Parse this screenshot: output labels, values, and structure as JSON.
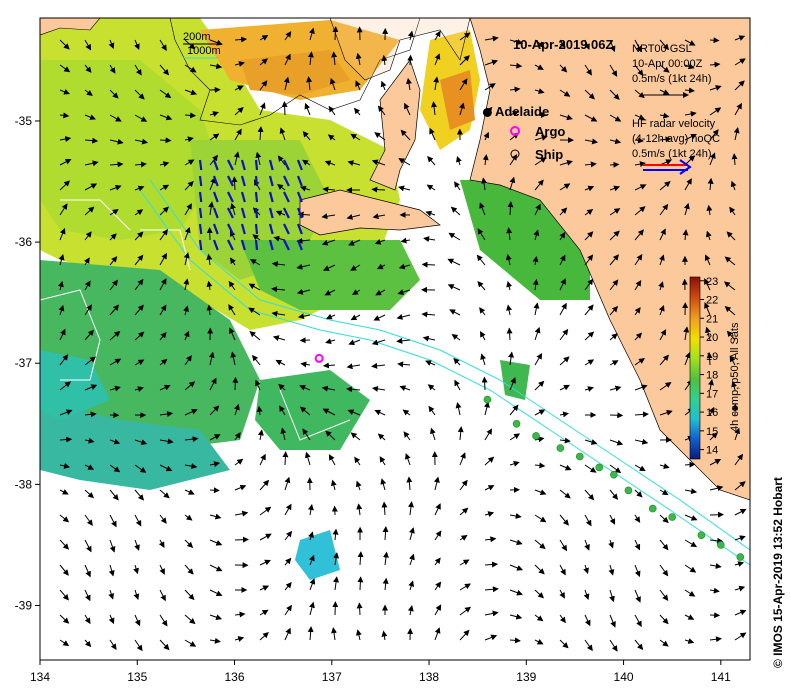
{
  "title": "10-Apr-2019 06Z",
  "axes": {
    "lon_ticks": [
      "134",
      "135",
      "136",
      "137",
      "138",
      "139",
      "140",
      "141"
    ],
    "lat_ticks": [
      "-35",
      "-36",
      "-37",
      "-38",
      "-39"
    ],
    "lon_range": [
      134,
      141.3
    ],
    "lat_range": [
      -39.45,
      -34.15
    ]
  },
  "depth_legend": {
    "line1": "200m",
    "line2": "1000m",
    "color1": "#000000",
    "color2": "#33dddd"
  },
  "gsl_legend": {
    "line1": "NRT00 GSL",
    "line2": "10-Apr 00:00Z",
    "line3": "0.5m/s (1kt 24h)"
  },
  "hf_legend": {
    "line1": "HF radar velocity",
    "line2": "(4-12h avg) noQC",
    "line3": "0.5m/s (1kt 24h)",
    "color_a": "#ff0000",
    "color_b": "#0000ff"
  },
  "markers": {
    "adelaide": {
      "label": "Adelaide",
      "lon": 138.6,
      "lat": -34.93
    },
    "argo": {
      "label": "Argo",
      "lon": 136.87,
      "lat": -36.96,
      "color": "#ff00ff"
    },
    "ship": {
      "label": "Ship"
    }
  },
  "ship_track": [
    [
      138.6,
      -37.3
    ],
    [
      138.9,
      -37.5
    ],
    [
      139.1,
      -37.6
    ],
    [
      139.35,
      -37.7
    ],
    [
      139.55,
      -37.77
    ],
    [
      139.75,
      -37.86
    ],
    [
      139.9,
      -37.92
    ],
    [
      140.05,
      -38.05
    ],
    [
      140.3,
      -38.2
    ],
    [
      140.5,
      -38.27
    ],
    [
      140.8,
      -38.42
    ],
    [
      141.0,
      -38.5
    ],
    [
      141.2,
      -38.6
    ]
  ],
  "colorbar": {
    "label": "4h comp, p50, All Sats",
    "ticks": [
      "14",
      "15",
      "16",
      "17",
      "18",
      "19",
      "20",
      "21",
      "22",
      "23"
    ],
    "min": 13.5,
    "max": 23.2
  },
  "credit": "© IMOS 15-Apr-2019 13:52 Hobart",
  "colors": {
    "land": "#fbc99b",
    "sea_blank": "#ffffff"
  }
}
